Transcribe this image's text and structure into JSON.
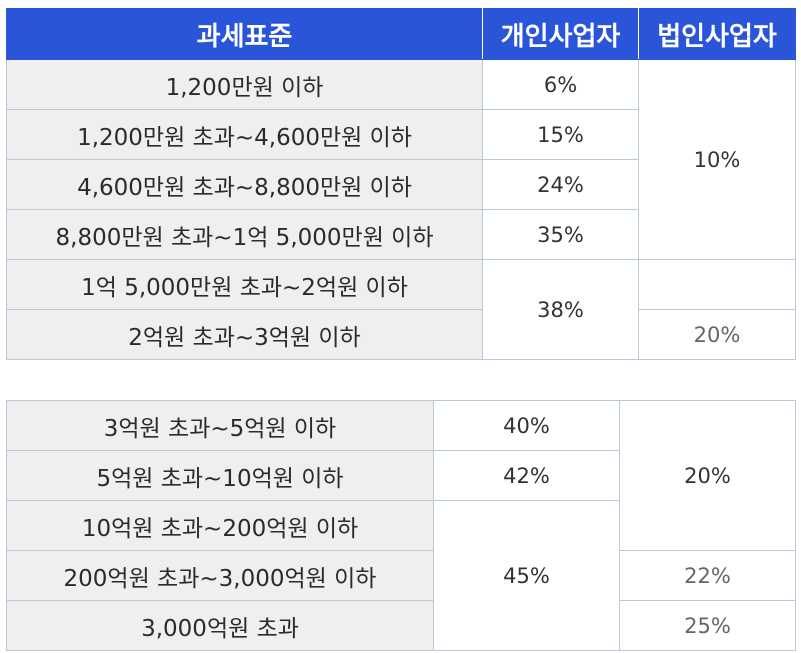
{
  "table1": {
    "headers": [
      "과세표준",
      "개인사업자",
      "법인사업자"
    ],
    "rows": [
      {
        "bracket": "1,200만원 이하",
        "individual": "6%"
      },
      {
        "bracket": "1,200만원 초과~4,600만원 이하",
        "individual": "15%"
      },
      {
        "bracket": "4,600만원 초과~8,800만원 이하",
        "individual": "24%"
      },
      {
        "bracket": "8,800만원 초과~1억 5,000만원 이하",
        "individual": "35%"
      },
      {
        "bracket": "1억 5,000만원 초과~2억원 이하",
        "individual": "38%"
      },
      {
        "bracket": "2억원 초과~3억원 이하"
      }
    ],
    "corporate_10": "10%",
    "corporate_20": "20%"
  },
  "table2": {
    "rows": [
      {
        "bracket": "3억원 초과~5억원 이하",
        "individual": "40%"
      },
      {
        "bracket": "5억원 초과~10억원 이하",
        "individual": "42%"
      },
      {
        "bracket": "10억원 초과~200억원 이하",
        "individual": "45%"
      },
      {
        "bracket": "200억원 초과~3,000억원 이하"
      },
      {
        "bracket": "3,000억원 초과"
      }
    ],
    "corporate_20": "20%",
    "corporate_22": "22%",
    "corporate_25": "25%"
  }
}
